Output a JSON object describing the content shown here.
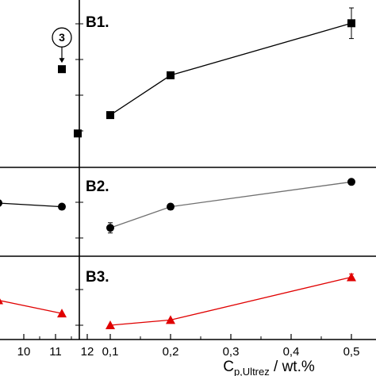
{
  "chart_data": [
    {
      "type": "line",
      "panel": "left-top",
      "series": [
        {
          "color": "#000000",
          "marker": "square",
          "points": [
            {
              "x": 11.2,
              "y": 0.6,
              "err": 0.04,
              "label": "3"
            },
            {
              "x": 11.7,
              "y": 0.18
            }
          ]
        }
      ]
    },
    {
      "type": "line",
      "panel": "left-middle",
      "series": [
        {
          "color": "#000000",
          "marker": "circle",
          "points": [
            {
              "x": 9.2,
              "y": 0.62
            },
            {
              "x": 11.2,
              "y": 0.57
            }
          ]
        }
      ]
    },
    {
      "type": "line",
      "panel": "left-bottom",
      "series": [
        {
          "color": "#e00000",
          "marker": "triangle",
          "points": [
            {
              "x": 9.2,
              "y": 0.5
            },
            {
              "x": 11.2,
              "y": 0.3
            }
          ]
        }
      ],
      "xticks": [
        {
          "value": 10,
          "label": "10"
        },
        {
          "value": 11,
          "label": "11"
        },
        {
          "value": 12,
          "label": "12"
        }
      ]
    },
    {
      "type": "line",
      "panel": "B1",
      "title": "B1.",
      "xlim": [
        0.075,
        0.5375
      ],
      "series": [
        {
          "color": "#000000",
          "marker": "square",
          "points": [
            {
              "x": 0.1,
              "y": 0.3
            },
            {
              "x": 0.2,
              "y": 0.56
            },
            {
              "x": 0.5,
              "y": 0.9,
              "err": 0.2
            }
          ]
        }
      ]
    },
    {
      "type": "line",
      "panel": "B2",
      "title": "B2.",
      "xlim": [
        0.075,
        0.5375
      ],
      "series": [
        {
          "color": "#707070",
          "marker": "circle",
          "points": [
            {
              "x": 0.1,
              "y": 0.28,
              "err": 0.14
            },
            {
              "x": 0.2,
              "y": 0.57,
              "err": 0.08
            },
            {
              "x": 0.5,
              "y": 0.91
            }
          ]
        }
      ]
    },
    {
      "type": "line",
      "panel": "B3",
      "title": "B3.",
      "xlim": [
        0.075,
        0.5375
      ],
      "xlabel_main": "C",
      "xlabel_sub": "p,Ultrez",
      "xlabel_unit": " / wt.%",
      "xticks": [
        {
          "value": 0.1,
          "label": "0,1"
        },
        {
          "value": 0.2,
          "label": "0,2"
        },
        {
          "value": 0.3,
          "label": "0,3"
        },
        {
          "value": 0.4,
          "label": "0,4"
        },
        {
          "value": 0.5,
          "label": "0,5"
        }
      ],
      "series": [
        {
          "color": "#e00000",
          "marker": "triangle",
          "points": [
            {
              "x": 0.1,
              "y": 0.12
            },
            {
              "x": 0.2,
              "y": 0.2
            },
            {
              "x": 0.5,
              "y": 0.85,
              "err": 0.1
            }
          ]
        }
      ]
    }
  ]
}
